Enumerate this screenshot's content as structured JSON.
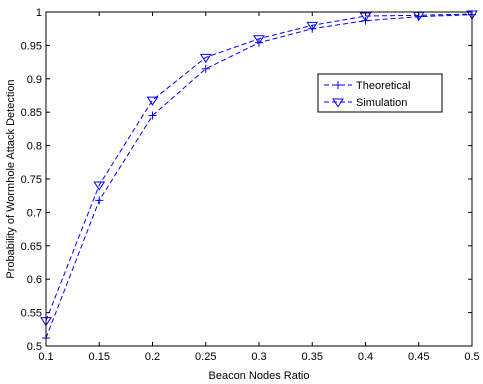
{
  "chart_data": {
    "type": "line",
    "title": "",
    "xlabel": "Beacon Nodes Ratio",
    "ylabel": "Probability of Wormhole Attack Detection",
    "xlim": [
      0.1,
      0.5
    ],
    "ylim": [
      0.5,
      1
    ],
    "x_ticks": [
      "0.1",
      "0.15",
      "0.2",
      "0.25",
      "0.3",
      "0.35",
      "0.4",
      "0.45",
      "0.5"
    ],
    "y_ticks": [
      "0.5",
      "0.55",
      "0.6",
      "0.65",
      "0.7",
      "0.75",
      "0.8",
      "0.85",
      "0.9",
      "0.95",
      "1"
    ],
    "grid": false,
    "legend_position": "right",
    "x": [
      0.1,
      0.15,
      0.2,
      0.25,
      0.3,
      0.35,
      0.4,
      0.45,
      0.5
    ],
    "series": [
      {
        "name": "Theoretical",
        "marker": "plus",
        "line_style": "dashed",
        "color": "#0000ff",
        "values": [
          0.512,
          0.718,
          0.845,
          0.915,
          0.954,
          0.975,
          0.987,
          0.993,
          0.996
        ]
      },
      {
        "name": "Simulation",
        "marker": "triangle-down",
        "line_style": "dashed",
        "color": "#0000ff",
        "values": [
          0.538,
          0.741,
          0.868,
          0.932,
          0.96,
          0.98,
          0.994,
          0.995,
          0.997
        ]
      }
    ]
  }
}
